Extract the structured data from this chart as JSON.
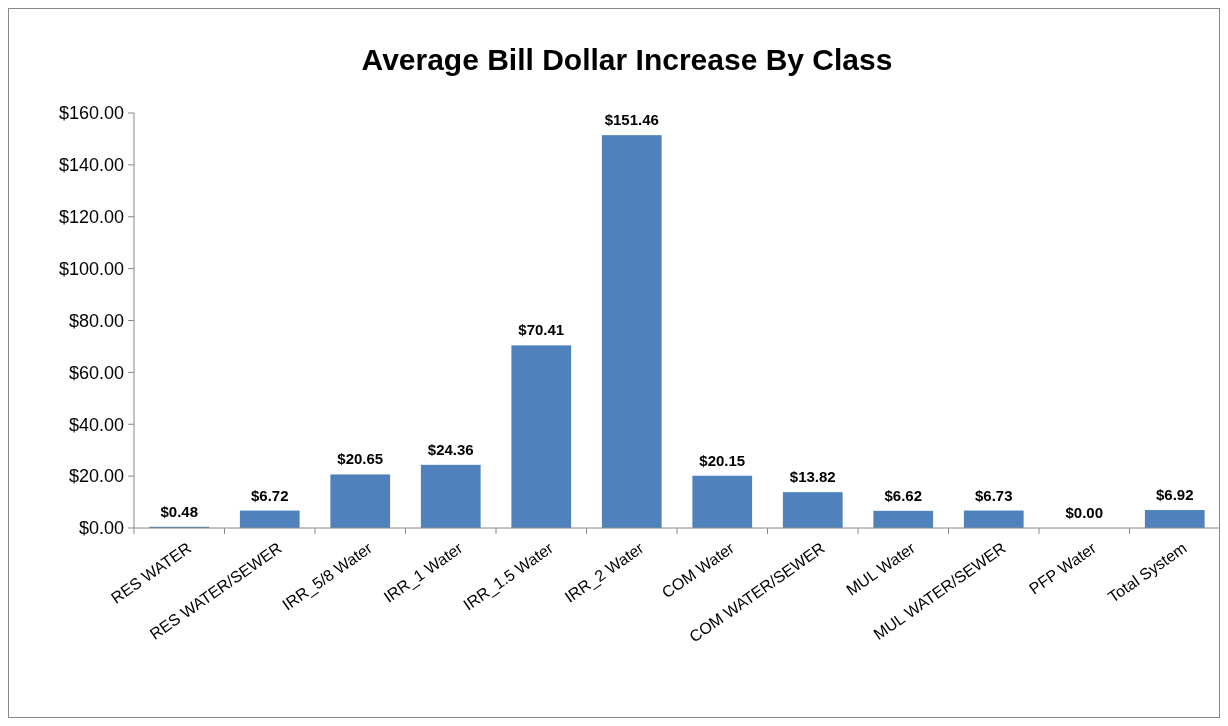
{
  "chart_data": {
    "type": "bar",
    "title": "Average Bill Dollar Increase By Class",
    "categories": [
      "RES WATER",
      "RES WATER/SEWER",
      "IRR_5/8 Water",
      "IRR_1 Water",
      "IRR_1.5 Water",
      "IRR_2 Water",
      "COM Water",
      "COM WATER/SEWER",
      "MUL Water",
      "MUL WATER/SEWER",
      "PFP Water",
      "Total System"
    ],
    "values": [
      0.48,
      6.72,
      20.65,
      24.36,
      70.41,
      151.46,
      20.15,
      13.82,
      6.62,
      6.73,
      0,
      6.92
    ],
    "value_labels": [
      "$0.48",
      "$6.72",
      "$20.65",
      "$24.36",
      "$70.41",
      "$151.46",
      "$20.15",
      "$13.82",
      "$6.62",
      "$6.73",
      "$0.00",
      "$6.92"
    ],
    "color": "#4f81bd",
    "ylim": [
      0,
      160
    ],
    "yticks": [
      {
        "value": 0,
        "label": "$0.00"
      },
      {
        "value": 20,
        "label": "$20.00"
      },
      {
        "value": 40,
        "label": "$40.00"
      },
      {
        "value": 60,
        "label": "$60.00"
      },
      {
        "value": 80,
        "label": "$80.00"
      },
      {
        "value": 100,
        "label": "$100.00"
      },
      {
        "value": 120,
        "label": "$120.00"
      },
      {
        "value": 140,
        "label": "$140.00"
      },
      {
        "value": 160,
        "label": "$160.00"
      }
    ],
    "grid": false
  }
}
